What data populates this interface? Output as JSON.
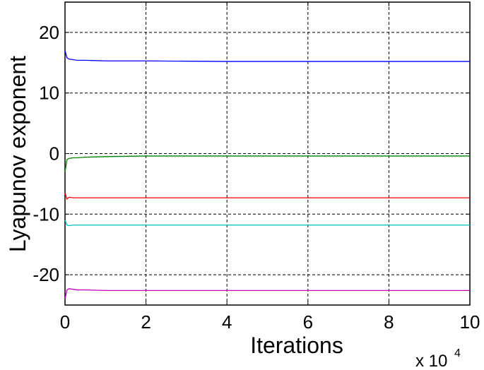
{
  "chart_data": {
    "type": "line",
    "xlabel": "Iterations",
    "ylabel": "Lyapunov exponent",
    "x_multiplier": "x 10",
    "x_multiplier_exponent": "4",
    "x": [
      0,
      500,
      1000,
      2000,
      3000,
      5000,
      10000,
      20000,
      40000,
      60000,
      80000,
      100000
    ],
    "series": [
      {
        "color": "#0000ff",
        "values": [
          17,
          15.8,
          15.6,
          15.5,
          15.4,
          15.4,
          15.3,
          15.3,
          15.2,
          15.2,
          15.2,
          15.2
        ]
      },
      {
        "color": "#008000",
        "values": [
          -3,
          -1,
          -0.8,
          -0.7,
          -0.7,
          -0.6,
          -0.5,
          -0.4,
          -0.4,
          -0.4,
          -0.4,
          -0.4
        ]
      },
      {
        "color": "#ff0000",
        "values": [
          -6.5,
          -7.5,
          -7.2,
          -7.3,
          -7.3,
          -7.3,
          -7.3,
          -7.3,
          -7.3,
          -7.3,
          -7.3,
          -7.3
        ]
      },
      {
        "color": "#00bfbf",
        "values": [
          -11,
          -11.8,
          -11.9,
          -11.8,
          -11.8,
          -11.8,
          -11.8,
          -11.8,
          -11.8,
          -11.8,
          -11.8,
          -11.8
        ]
      },
      {
        "color": "#bf00bf",
        "values": [
          -24,
          -22.5,
          -22.3,
          -22.4,
          -22.5,
          -22.5,
          -22.6,
          -22.6,
          -22.6,
          -22.6,
          -22.6,
          -22.6
        ]
      }
    ],
    "xlim": [
      0,
      100000
    ],
    "xticks": [
      0,
      {
        "value": 20000,
        "label": "2"
      },
      {
        "value": 40000,
        "label": "4"
      },
      {
        "value": 60000,
        "label": "6"
      },
      {
        "value": 80000,
        "label": "8"
      },
      {
        "value": 100000,
        "label": "10"
      }
    ],
    "ylim": [
      -25,
      25
    ],
    "yticks": [
      -20,
      -10,
      0,
      10,
      20
    ],
    "grid": true
  }
}
